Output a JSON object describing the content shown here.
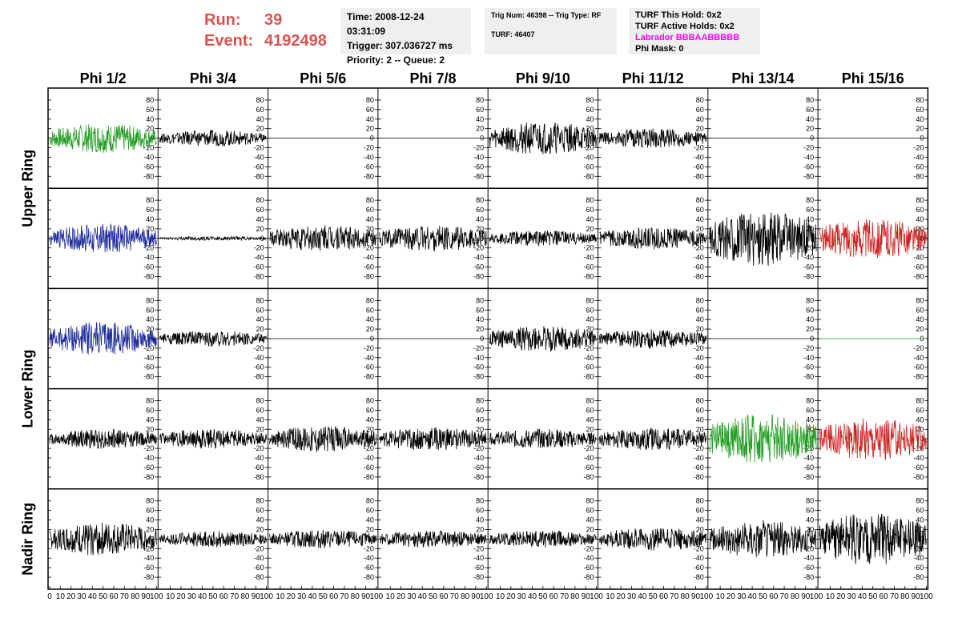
{
  "header": {
    "run_label": "Run:",
    "run_value": "39",
    "event_label": "Event:",
    "event_value": "4192498",
    "time": "Time: 2008-12-24 03:31:09",
    "trigger": "Trigger: 307.036727 ms",
    "priority": "Priority: 2 -- Queue: 2",
    "trig_num": "Trig Num: 46398 -- Trig Type: RF",
    "turf": "TURF: 46407",
    "turf_this_hold": "TURF This Hold: 0x2",
    "turf_active_holds": "TURF Active Holds: 0x2",
    "labrador": "Labrador BBBAABBBBB",
    "phi_mask": "Phi Mask: 0"
  },
  "colors": {
    "run_text": "#d9534f",
    "labrador_text": "#ff00ff",
    "trace_black": "#000000",
    "trace_green": "#1f9e1f",
    "trace_blue": "#1c2a9a",
    "trace_red": "#cc2222"
  },
  "chart_data": {
    "type": "line",
    "columns": [
      "Phi 1/2",
      "Phi 3/4",
      "Phi 5/6",
      "Phi 7/8",
      "Phi 9/10",
      "Phi 11/12",
      "Phi 13/14",
      "Phi 15/16"
    ],
    "row_groups": [
      {
        "label": "Upper Ring",
        "rows": [
          0,
          1
        ]
      },
      {
        "label": "Lower Ring",
        "rows": [
          2,
          3
        ]
      },
      {
        "label": "Nadir Ring",
        "rows": [
          4
        ]
      }
    ],
    "xlim": [
      0,
      100
    ],
    "x_ticks": [
      0,
      10,
      20,
      30,
      40,
      50,
      60,
      70,
      80,
      90,
      100
    ],
    "ylim": [
      -95,
      95
    ],
    "y_ticks": [
      -80,
      -60,
      -40,
      -20,
      0,
      20,
      40,
      60,
      80
    ],
    "panels": [
      [
        {
          "amp": 22,
          "color": "trace_green"
        },
        {
          "amp": 12,
          "color": "trace_black"
        },
        {
          "amp": 0,
          "color": "trace_black"
        },
        {
          "amp": 0,
          "color": "trace_black"
        },
        {
          "amp": 25,
          "color": "trace_black"
        },
        {
          "amp": 15,
          "color": "trace_black"
        },
        {
          "amp": 0,
          "color": "trace_black"
        },
        {
          "amp": 0,
          "color": "trace_black"
        }
      ],
      [
        {
          "amp": 22,
          "color": "trace_blue"
        },
        {
          "amp": 3,
          "color": "trace_black"
        },
        {
          "amp": 20,
          "color": "trace_black"
        },
        {
          "amp": 20,
          "color": "trace_black"
        },
        {
          "amp": 12,
          "color": "trace_black"
        },
        {
          "amp": 17,
          "color": "trace_black"
        },
        {
          "amp": 42,
          "color": "trace_black"
        },
        {
          "amp": 30,
          "color": "trace_red"
        }
      ],
      [
        {
          "amp": 25,
          "color": "trace_blue"
        },
        {
          "amp": 12,
          "color": "trace_black"
        },
        {
          "amp": 0,
          "color": "trace_black"
        },
        {
          "amp": 0,
          "color": "trace_black"
        },
        {
          "amp": 20,
          "color": "trace_black"
        },
        {
          "amp": 15,
          "color": "trace_black"
        },
        {
          "amp": 0,
          "color": "trace_black"
        },
        {
          "amp": 0,
          "color": "trace_green"
        }
      ],
      [
        {
          "amp": 15,
          "color": "trace_black"
        },
        {
          "amp": 15,
          "color": "trace_black"
        },
        {
          "amp": 20,
          "color": "trace_black"
        },
        {
          "amp": 18,
          "color": "trace_black"
        },
        {
          "amp": 15,
          "color": "trace_black"
        },
        {
          "amp": 17,
          "color": "trace_black"
        },
        {
          "amp": 38,
          "color": "trace_green"
        },
        {
          "amp": 32,
          "color": "trace_red"
        }
      ],
      [
        {
          "amp": 25,
          "color": "trace_black"
        },
        {
          "amp": 12,
          "color": "trace_black"
        },
        {
          "amp": 14,
          "color": "trace_black"
        },
        {
          "amp": 13,
          "color": "trace_black"
        },
        {
          "amp": 13,
          "color": "trace_black"
        },
        {
          "amp": 18,
          "color": "trace_black"
        },
        {
          "amp": 28,
          "color": "trace_black"
        },
        {
          "amp": 40,
          "color": "trace_black"
        }
      ]
    ]
  }
}
